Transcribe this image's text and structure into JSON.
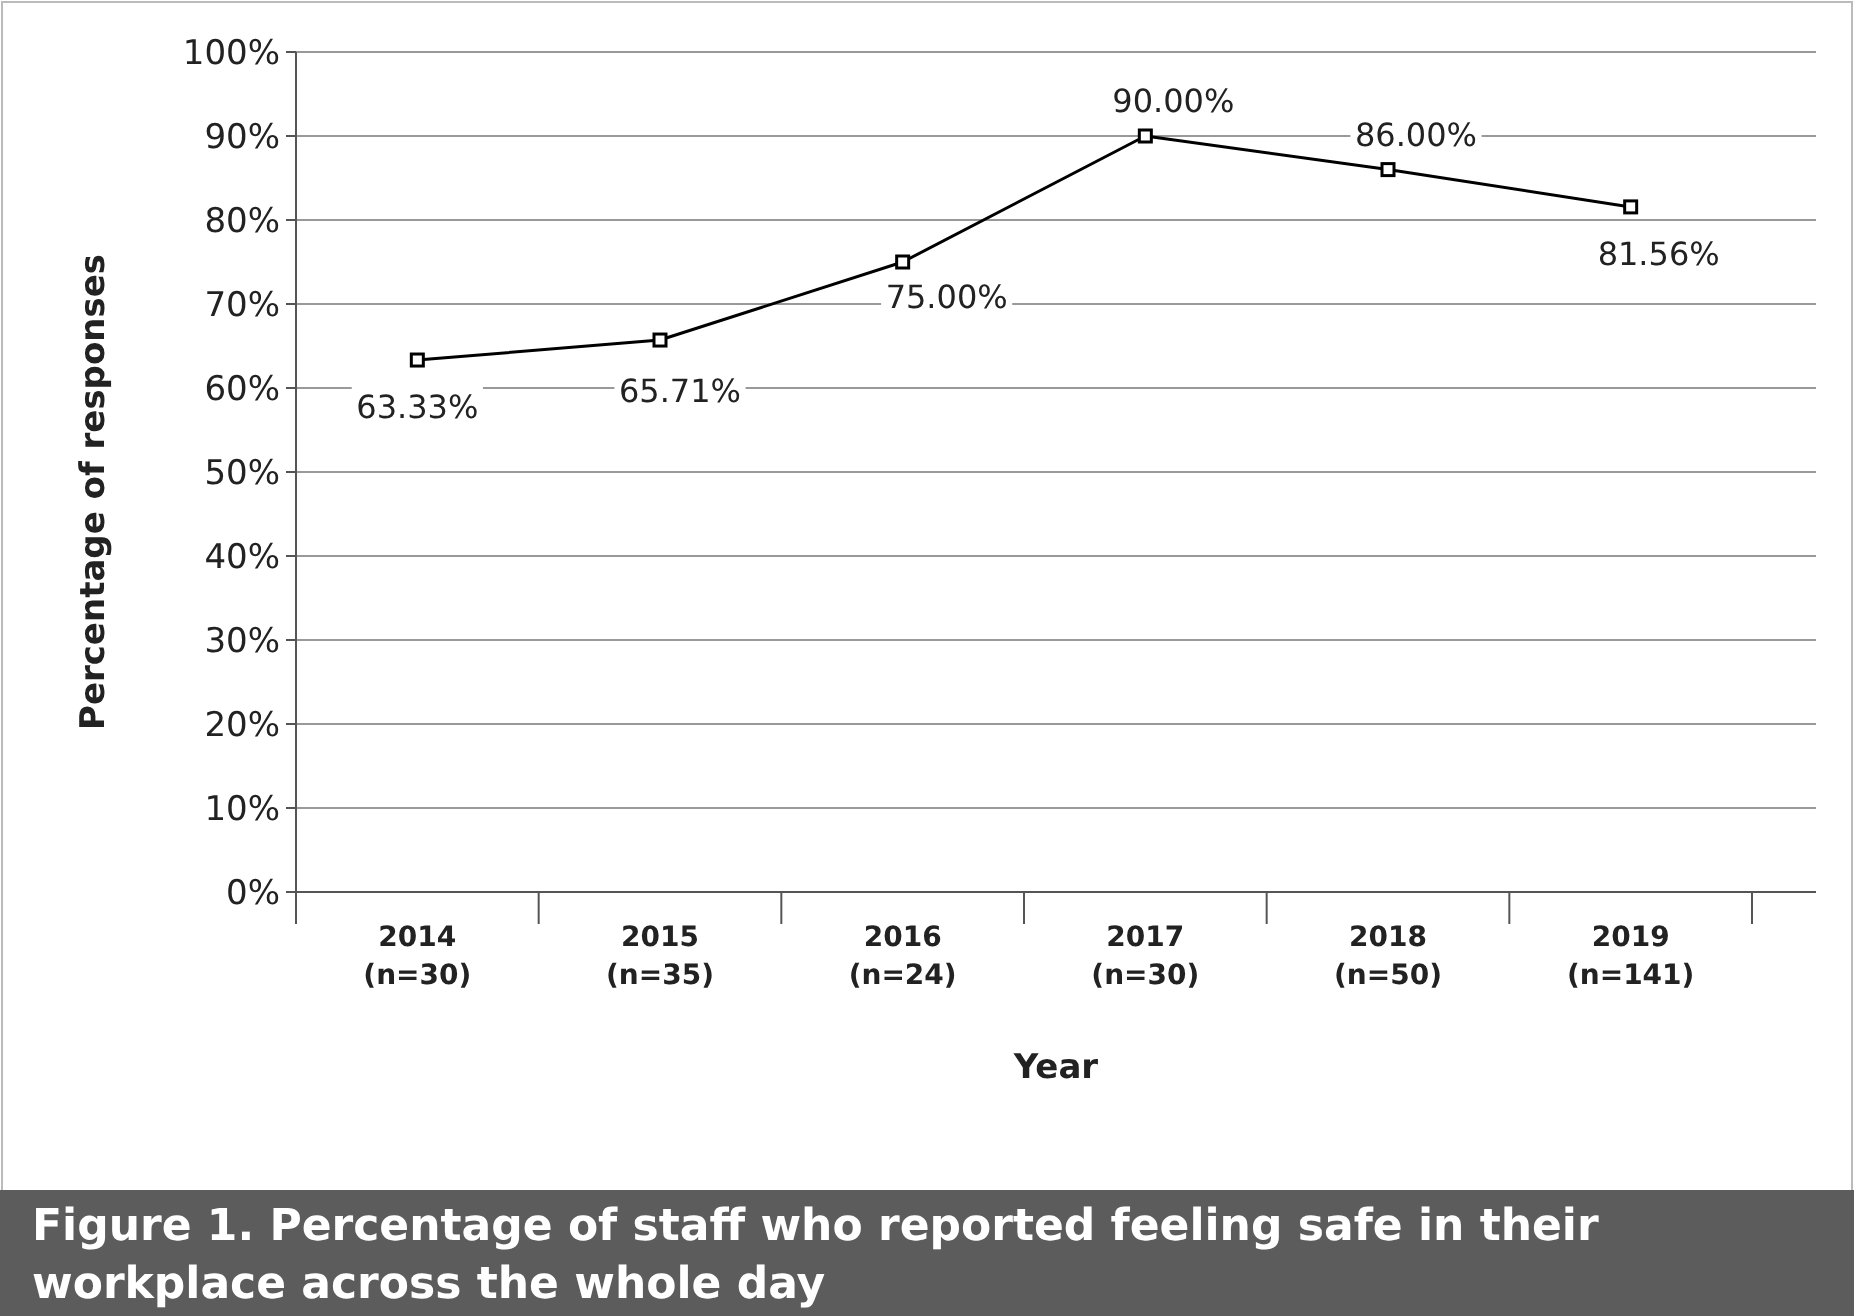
{
  "chart_data": {
    "type": "line",
    "title": "Figure 1. Percentage of staff who reported feeling safe in their workplace across the whole day",
    "xlabel": "Year",
    "ylabel": "Percentage of responses",
    "categories": [
      "2014\n(n=30)",
      "2015\n(n=35)",
      "2016\n(n=24)",
      "2017\n(n=30)",
      "2018\n(n=50)",
      "2019\n(n=141)"
    ],
    "series": [
      {
        "color": "#000000",
        "values": [
          63.33,
          65.71,
          75,
          90,
          86,
          81.56
        ],
        "value_labels": [
          "63.33%",
          "65.71%",
          "75.00%",
          "90.00%",
          "86.00%",
          "81.56%"
        ]
      }
    ],
    "ylim": [
      0,
      100
    ],
    "yticks": [
      {
        "value": 0,
        "label": "0%"
      },
      {
        "value": 10,
        "label": "10%"
      },
      {
        "value": 20,
        "label": "20%"
      },
      {
        "value": 30,
        "label": "30%"
      },
      {
        "value": 40,
        "label": "40%"
      },
      {
        "value": 50,
        "label": "50%"
      },
      {
        "value": 60,
        "label": "60%"
      },
      {
        "value": 70,
        "label": "70%"
      },
      {
        "value": 80,
        "label": "80%"
      },
      {
        "value": 90,
        "label": "90%"
      },
      {
        "value": 100,
        "label": "100%"
      }
    ],
    "grid": "y",
    "marker": "square",
    "line_style": "solid"
  }
}
